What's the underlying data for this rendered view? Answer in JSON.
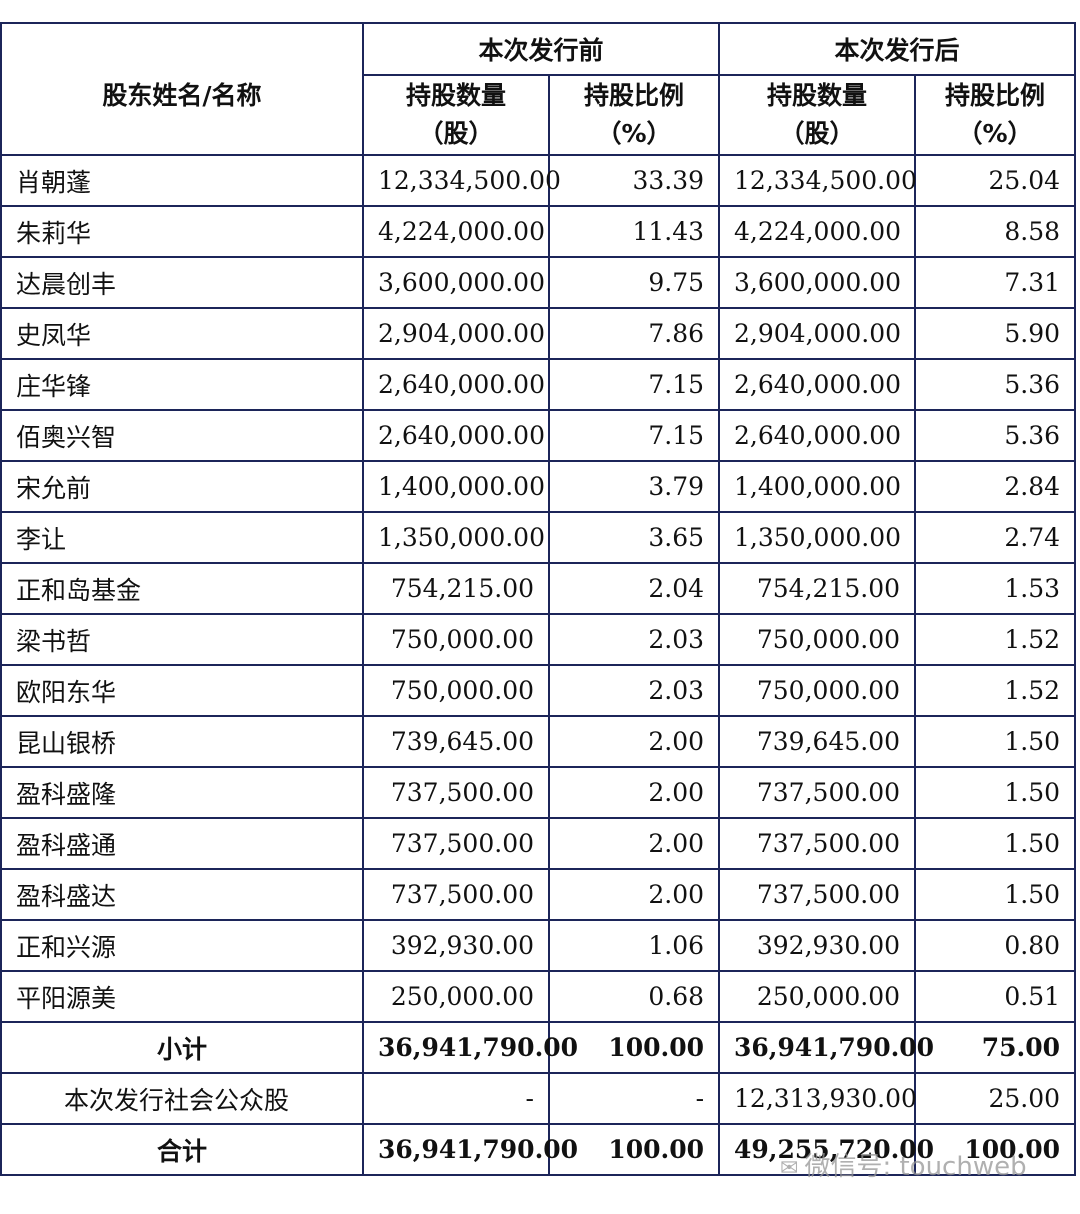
{
  "table": {
    "header": {
      "shareholder": "股东姓名/名称",
      "before": "本次发行前",
      "after": "本次发行后",
      "qty_line1": "持股数量",
      "qty_line2": "（股）",
      "ratio_line1": "持股比例",
      "ratio_line2": "（%）"
    },
    "rows": [
      {
        "name": "肖朝蓬",
        "qty_before": "12,334,500.00",
        "pct_before": "33.39",
        "qty_after": "12,334,500.00",
        "pct_after": "25.04"
      },
      {
        "name": "朱莉华",
        "qty_before": "4,224,000.00",
        "pct_before": "11.43",
        "qty_after": "4,224,000.00",
        "pct_after": "8.58"
      },
      {
        "name": "达晨创丰",
        "qty_before": "3,600,000.00",
        "pct_before": "9.75",
        "qty_after": "3,600,000.00",
        "pct_after": "7.31"
      },
      {
        "name": "史凤华",
        "qty_before": "2,904,000.00",
        "pct_before": "7.86",
        "qty_after": "2,904,000.00",
        "pct_after": "5.90"
      },
      {
        "name": "庄华锋",
        "qty_before": "2,640,000.00",
        "pct_before": "7.15",
        "qty_after": "2,640,000.00",
        "pct_after": "5.36"
      },
      {
        "name": "佰奥兴智",
        "qty_before": "2,640,000.00",
        "pct_before": "7.15",
        "qty_after": "2,640,000.00",
        "pct_after": "5.36"
      },
      {
        "name": "宋允前",
        "qty_before": "1,400,000.00",
        "pct_before": "3.79",
        "qty_after": "1,400,000.00",
        "pct_after": "2.84"
      },
      {
        "name": "李让",
        "qty_before": "1,350,000.00",
        "pct_before": "3.65",
        "qty_after": "1,350,000.00",
        "pct_after": "2.74"
      },
      {
        "name": "正和岛基金",
        "qty_before": "754,215.00",
        "pct_before": "2.04",
        "qty_after": "754,215.00",
        "pct_after": "1.53"
      },
      {
        "name": "梁书哲",
        "qty_before": "750,000.00",
        "pct_before": "2.03",
        "qty_after": "750,000.00",
        "pct_after": "1.52"
      },
      {
        "name": "欧阳东华",
        "qty_before": "750,000.00",
        "pct_before": "2.03",
        "qty_after": "750,000.00",
        "pct_after": "1.52"
      },
      {
        "name": "昆山银桥",
        "qty_before": "739,645.00",
        "pct_before": "2.00",
        "qty_after": "739,645.00",
        "pct_after": "1.50"
      },
      {
        "name": "盈科盛隆",
        "qty_before": "737,500.00",
        "pct_before": "2.00",
        "qty_after": "737,500.00",
        "pct_after": "1.50"
      },
      {
        "name": "盈科盛通",
        "qty_before": "737,500.00",
        "pct_before": "2.00",
        "qty_after": "737,500.00",
        "pct_after": "1.50"
      },
      {
        "name": "盈科盛达",
        "qty_before": "737,500.00",
        "pct_before": "2.00",
        "qty_after": "737,500.00",
        "pct_after": "1.50"
      },
      {
        "name": "正和兴源",
        "qty_before": "392,930.00",
        "pct_before": "1.06",
        "qty_after": "392,930.00",
        "pct_after": "0.80"
      },
      {
        "name": "平阳源美",
        "qty_before": "250,000.00",
        "pct_before": "0.68",
        "qty_after": "250,000.00",
        "pct_after": "0.51"
      }
    ],
    "subtotal": {
      "label": "小计",
      "qty_before": "36,941,790.00",
      "pct_before": "100.00",
      "qty_after": "36,941,790.00",
      "pct_after": "75.00"
    },
    "public": {
      "label": "本次发行社会公众股",
      "qty_before": "-",
      "pct_before": "-",
      "qty_after": "12,313,930.00",
      "pct_after": "25.00"
    },
    "total": {
      "label": "合计",
      "qty_before": "36,941,790.00",
      "pct_before": "100.00",
      "qty_after": "49,255,720.00",
      "pct_after": "100.00"
    }
  },
  "watermark": {
    "text": "微信号: touchweb",
    "icon": "wechat-icon"
  }
}
